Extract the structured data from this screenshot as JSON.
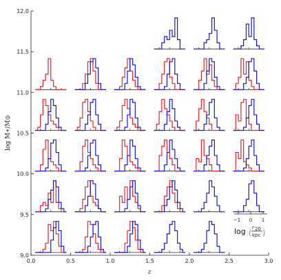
{
  "chart_data": {
    "type": "line",
    "title": "",
    "xlabel": "z",
    "ylabel": "log M∗/M⊙",
    "xlim": [
      0.0,
      3.0
    ],
    "ylim": [
      9.0,
      12.0
    ],
    "xticks": [
      0.0,
      0.5,
      1.0,
      1.5,
      2.0,
      2.5,
      3.0
    ],
    "xtick_labels": [
      "0.0",
      "0.5",
      "1.0",
      "1.5",
      "2.0",
      "2.5",
      "3.0"
    ],
    "yticks": [
      9.0,
      9.5,
      10.0,
      10.5,
      11.0,
      11.5,
      12.0
    ],
    "ytick_labels": [
      "9.0",
      "9.5",
      "10.0",
      "10.5",
      "11.0",
      "11.5",
      "12.0"
    ],
    "grid": false,
    "panel_grid": {
      "z_bin_starts": [
        0.0,
        0.5,
        1.0,
        1.5,
        2.0,
        2.5
      ],
      "mass_bin_starts": [
        9.0,
        9.5,
        10.0,
        10.5,
        11.0,
        11.5
      ],
      "histogram_x": "log(r20/kpc)",
      "histogram_x_range": [
        -1.5,
        1.5
      ],
      "histogram_ticks": [
        -1,
        0,
        1
      ]
    },
    "series_colors": {
      "red": "#e8232a",
      "blue": "#1515e0"
    },
    "panels": [
      {
        "z": 0.0,
        "logM": 9.0,
        "red": [
          0,
          0,
          0,
          0.1,
          0.3,
          0.9,
          0.7,
          1.0,
          0.6,
          0.2,
          0,
          0
        ],
        "blue": [
          0,
          0,
          0,
          0,
          0,
          0,
          0.4,
          0.8,
          1.0,
          0.7,
          0.2,
          0
        ]
      },
      {
        "z": 0.5,
        "logM": 9.0,
        "red": [
          0,
          0,
          0,
          0.1,
          0.5,
          1.0,
          0.9,
          0.6,
          0.3,
          0.1,
          0,
          0
        ],
        "blue": [
          0,
          0,
          0,
          0,
          0,
          0.2,
          0.5,
          0.9,
          1.0,
          0.5,
          0.1,
          0
        ]
      },
      {
        "z": 1.0,
        "logM": 9.0,
        "red": [
          0,
          0,
          0,
          0,
          0.3,
          0.7,
          1.0,
          0.8,
          0.4,
          0.1,
          0,
          0
        ],
        "blue": [
          0,
          0,
          0,
          0,
          0,
          0.2,
          0.6,
          1.0,
          0.9,
          0.4,
          0.1,
          0
        ]
      },
      {
        "z": 1.5,
        "logM": 9.0,
        "red": null,
        "blue": [
          0,
          0,
          0,
          0.1,
          0.3,
          0.6,
          0.9,
          1.0,
          0.7,
          0.3,
          0.1,
          0
        ]
      },
      {
        "z": 2.0,
        "logM": 9.0,
        "red": null,
        "blue": [
          0,
          0,
          0,
          0.1,
          0.3,
          0.7,
          1.0,
          0.9,
          0.6,
          0.2,
          0,
          0
        ]
      },
      {
        "z": 0.0,
        "logM": 9.5,
        "red": [
          0,
          0,
          0.2,
          0.3,
          0.2,
          0.6,
          0.3,
          1.0,
          0.3,
          0.1,
          0,
          0
        ],
        "blue": [
          0,
          0,
          0,
          0,
          0.1,
          0.4,
          0.7,
          1.0,
          0.8,
          0.3,
          0.1,
          0
        ]
      },
      {
        "z": 0.5,
        "logM": 9.5,
        "red": [
          0,
          0,
          0.1,
          0.4,
          0.8,
          1.0,
          0.5,
          0.3,
          0.2,
          0.1,
          0,
          0
        ],
        "blue": [
          0,
          0,
          0,
          0,
          0.2,
          0.5,
          1.0,
          0.9,
          0.4,
          0.1,
          0,
          0
        ]
      },
      {
        "z": 1.0,
        "logM": 9.5,
        "red": [
          0,
          0,
          0.5,
          0.3,
          0.8,
          0.4,
          1.0,
          0.5,
          0.3,
          0.1,
          0,
          0
        ],
        "blue": [
          0,
          0,
          0,
          0,
          0.1,
          0.4,
          0.8,
          1.0,
          0.6,
          0.2,
          0,
          0
        ]
      },
      {
        "z": 1.5,
        "logM": 9.5,
        "red": [
          0,
          0,
          0,
          0.2,
          0.5,
          0.8,
          1.0,
          0.6,
          0.3,
          0.1,
          0,
          0
        ],
        "blue": [
          0,
          0,
          0,
          0,
          0.2,
          0.4,
          0.8,
          1.0,
          0.7,
          0.3,
          0.1,
          0
        ]
      },
      {
        "z": 2.0,
        "logM": 9.5,
        "red": null,
        "blue": [
          0,
          0,
          0,
          0.1,
          0.3,
          0.6,
          1.0,
          0.8,
          0.5,
          0.2,
          0,
          0
        ]
      },
      {
        "z": 2.5,
        "logM": 9.5,
        "red": null,
        "blue": [
          0,
          0,
          0,
          0,
          0.2,
          0.4,
          0.9,
          1.0,
          0.6,
          0.2,
          0,
          0
        ]
      },
      {
        "z": 0.0,
        "logM": 10.0,
        "red": [
          0,
          0,
          0.2,
          0.7,
          1.0,
          0.4,
          0.3,
          0.2,
          0.1,
          0,
          0,
          0
        ],
        "blue": [
          0,
          0,
          0,
          0,
          0.1,
          0.4,
          0.9,
          1.0,
          0.6,
          0.2,
          0,
          0
        ]
      },
      {
        "z": 0.5,
        "logM": 10.0,
        "red": [
          0,
          0,
          0.3,
          0.8,
          1.0,
          0.6,
          0.4,
          0.2,
          0.1,
          0,
          0,
          0
        ],
        "blue": [
          0,
          0,
          0,
          0,
          0.1,
          0.5,
          0.9,
          1.0,
          0.5,
          0.2,
          0,
          0
        ]
      },
      {
        "z": 1.0,
        "logM": 10.0,
        "red": [
          0,
          0,
          0.4,
          1.0,
          0.8,
          0.5,
          0.3,
          0.2,
          0.1,
          0,
          0,
          0
        ],
        "blue": [
          0,
          0,
          0,
          0,
          0.2,
          0.5,
          1.0,
          0.8,
          0.4,
          0.1,
          0,
          0
        ]
      },
      {
        "z": 1.5,
        "logM": 10.0,
        "red": [
          0,
          0,
          0.5,
          0.8,
          1.0,
          0.6,
          0.4,
          0.2,
          0,
          0,
          0,
          0
        ],
        "blue": [
          0,
          0,
          0,
          0,
          0.2,
          0.6,
          1.0,
          0.7,
          0.4,
          0.1,
          0,
          0
        ]
      },
      {
        "z": 2.0,
        "logM": 10.0,
        "red": [
          0,
          0.4,
          0.3,
          1.0,
          0.5,
          0.4,
          0.2,
          0,
          0,
          0,
          0,
          0
        ],
        "blue": [
          0,
          0,
          0,
          0,
          0.2,
          0.5,
          0.8,
          1.0,
          0.5,
          0.2,
          0,
          0
        ]
      },
      {
        "z": 2.5,
        "logM": 10.0,
        "red": [
          0,
          0.6,
          0.4,
          1.0,
          0.3,
          0.2,
          0.1,
          0,
          0,
          0,
          0,
          0
        ],
        "blue": [
          0,
          0,
          0,
          0,
          0.1,
          0.4,
          0.8,
          1.0,
          0.5,
          0.2,
          0,
          0
        ]
      },
      {
        "z": 0.0,
        "logM": 10.5,
        "red": [
          0,
          0.1,
          0.5,
          1.0,
          0.8,
          0.5,
          0.3,
          0.2,
          0.1,
          0,
          0,
          0
        ],
        "blue": [
          0,
          0,
          0,
          0,
          0.2,
          0.6,
          1.0,
          0.8,
          0.4,
          0.1,
          0,
          0
        ]
      },
      {
        "z": 0.5,
        "logM": 10.5,
        "red": [
          0,
          0.1,
          0.4,
          0.9,
          1.0,
          0.6,
          0.3,
          0.1,
          0,
          0,
          0,
          0
        ],
        "blue": [
          0,
          0,
          0,
          0,
          0.2,
          0.5,
          0.9,
          1.0,
          0.5,
          0.2,
          0,
          0
        ]
      },
      {
        "z": 1.0,
        "logM": 10.5,
        "red": [
          0,
          0.1,
          0.3,
          0.8,
          1.0,
          0.7,
          0.4,
          0.2,
          0.1,
          0,
          0,
          0
        ],
        "blue": [
          0,
          0,
          0,
          0,
          0.1,
          0.5,
          1.0,
          0.9,
          0.4,
          0.1,
          0,
          0
        ]
      },
      {
        "z": 1.5,
        "logM": 10.5,
        "red": [
          0,
          0.2,
          0.6,
          1.0,
          0.7,
          0.5,
          0.3,
          0.1,
          0,
          0,
          0,
          0
        ],
        "blue": [
          0,
          0,
          0,
          0,
          0.2,
          0.6,
          1.0,
          0.7,
          0.3,
          0.1,
          0,
          0
        ]
      },
      {
        "z": 2.0,
        "logM": 10.5,
        "red": [
          0,
          0.3,
          0.7,
          1.0,
          0.6,
          0.4,
          0.2,
          0,
          0,
          0,
          0,
          0
        ],
        "blue": [
          0,
          0,
          0,
          0,
          0.2,
          0.5,
          0.9,
          1.0,
          0.4,
          0.1,
          0,
          0
        ]
      },
      {
        "z": 2.5,
        "logM": 10.5,
        "red": [
          0,
          0.5,
          0.3,
          0.9,
          1.0,
          0.4,
          0.2,
          0,
          0,
          0,
          0,
          0
        ],
        "blue": [
          0,
          0,
          0,
          0,
          0.1,
          0.4,
          0.8,
          1.0,
          0.5,
          0.2,
          0,
          0
        ]
      },
      {
        "z": 0.0,
        "logM": 11.0,
        "red": [
          0,
          0,
          0.1,
          0.3,
          0.5,
          1.0,
          0.3,
          0.1,
          0,
          0,
          0,
          0
        ],
        "blue": null
      },
      {
        "z": 0.5,
        "logM": 11.0,
        "red": [
          0,
          0,
          0,
          0.2,
          0.5,
          0.9,
          1.0,
          0.6,
          0.2,
          0,
          0,
          0
        ],
        "blue": [
          0,
          0,
          0,
          0,
          0.2,
          0.5,
          0.9,
          1.0,
          0.7,
          0.2,
          0,
          0
        ]
      },
      {
        "z": 1.0,
        "logM": 11.0,
        "red": [
          0,
          0,
          0.1,
          0.4,
          0.7,
          1.0,
          0.6,
          0.3,
          0.1,
          0,
          0,
          0
        ],
        "blue": [
          0,
          0,
          0,
          0,
          0.2,
          0.6,
          1.0,
          0.8,
          0.4,
          0.1,
          0,
          0
        ]
      },
      {
        "z": 1.5,
        "logM": 11.0,
        "red": [
          0,
          0,
          0.2,
          0.5,
          0.9,
          1.0,
          0.4,
          0.2,
          0,
          0,
          0,
          0
        ],
        "blue": [
          0,
          0,
          0,
          0,
          0.1,
          0.5,
          0.9,
          1.0,
          0.5,
          0.2,
          0,
          0
        ]
      },
      {
        "z": 2.0,
        "logM": 11.0,
        "red": [
          0,
          0,
          0.3,
          0.6,
          1.0,
          0.5,
          0.8,
          0.3,
          0.1,
          0,
          0,
          0
        ],
        "blue": [
          0,
          0,
          0,
          0,
          0.2,
          0.6,
          1.0,
          0.9,
          0.4,
          0.1,
          0,
          0
        ]
      },
      {
        "z": 2.5,
        "logM": 11.0,
        "red": [
          0,
          0.2,
          0.4,
          1.0,
          0.5,
          0.9,
          0.3,
          0.1,
          0,
          0,
          0,
          0
        ],
        "blue": [
          0,
          0,
          0,
          0,
          0.2,
          0.4,
          0.9,
          1.0,
          0.6,
          0.2,
          0,
          0
        ]
      },
      {
        "z": 1.5,
        "logM": 11.5,
        "red": null,
        "blue": [
          0,
          0,
          0,
          0.2,
          0.4,
          0.3,
          0.6,
          0.4,
          1.0,
          0.3,
          0,
          0
        ]
      },
      {
        "z": 2.0,
        "logM": 11.5,
        "red": null,
        "blue": [
          0,
          0,
          0,
          0,
          0.2,
          0.3,
          0.5,
          1.0,
          0.6,
          0.2,
          0,
          0
        ]
      },
      {
        "z": 2.5,
        "logM": 11.5,
        "red": null,
        "blue": [
          0,
          0,
          0,
          0.1,
          0.3,
          0.8,
          0.4,
          1.0,
          0.3,
          0.1,
          0,
          0
        ]
      }
    ]
  }
}
